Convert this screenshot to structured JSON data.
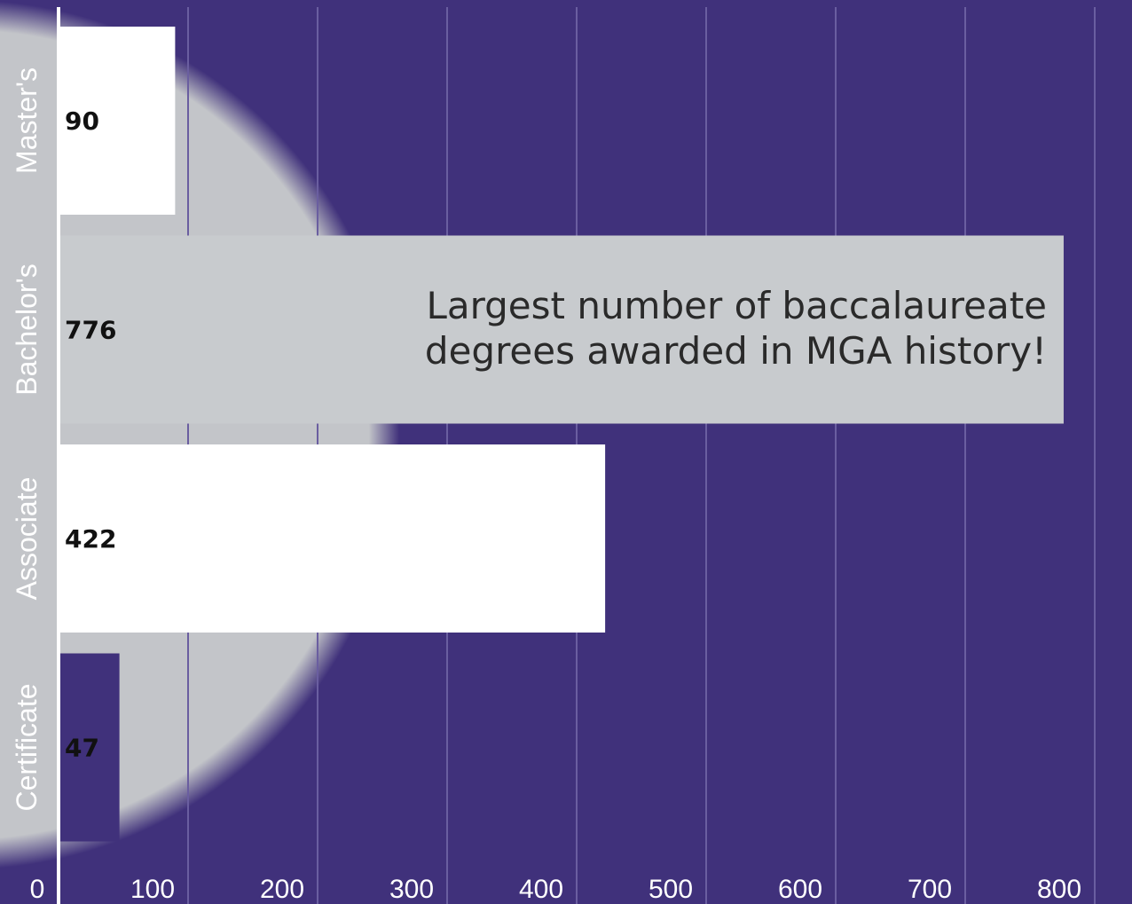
{
  "chart_data": {
    "type": "bar",
    "orientation": "horizontal",
    "categories": [
      "Master's",
      "Bachelor's",
      "Associate",
      "Certificate"
    ],
    "values": [
      90,
      776,
      422,
      47
    ],
    "data_labels": [
      "90",
      "776",
      "422",
      "47"
    ],
    "xlim": [
      0,
      800
    ],
    "x_ticks": [
      "0",
      "100",
      "200",
      "300",
      "400",
      "500",
      "600",
      "700",
      "800"
    ],
    "tick_values": [
      0,
      100,
      200,
      300,
      400,
      500,
      600,
      700,
      800
    ],
    "grid": true,
    "annotation": {
      "category": "Bachelor's",
      "lines": [
        "Largest number of baccalaureate",
        "degrees awarded in MGA history!"
      ]
    },
    "colors": {
      "background": "#40317b",
      "bar_default": "#ffffff",
      "bar_highlight": "#c8cbce",
      "bar_certificate": "#40317b",
      "circle": "#c3c5c9",
      "grid": "#6a5ea0"
    }
  }
}
